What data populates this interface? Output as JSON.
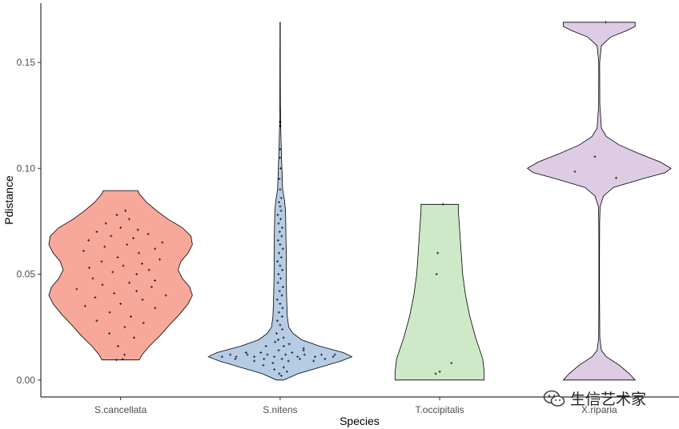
{
  "chart_data": {
    "type": "violin",
    "title": "",
    "xlabel": "Species",
    "ylabel": "Pdistance",
    "ylim": [
      -0.008,
      0.178
    ],
    "yticks": [
      0.0,
      0.05,
      0.1,
      0.15
    ],
    "ytick_labels": [
      "0.00",
      "0.05",
      "0.10",
      "0.15"
    ],
    "grid": false,
    "legend": "none",
    "categories": [
      "S.cancellata",
      "S.nitens",
      "T.occipitalis",
      "X.riparia"
    ],
    "violins": [
      {
        "category": "S.cancellata",
        "color": "#F8A89A",
        "profile": [
          [
            0.0095,
            0.26
          ],
          [
            0.012,
            0.3
          ],
          [
            0.016,
            0.4
          ],
          [
            0.021,
            0.55
          ],
          [
            0.026,
            0.68
          ],
          [
            0.031,
            0.82
          ],
          [
            0.036,
            0.94
          ],
          [
            0.04,
            1.0
          ],
          [
            0.044,
            0.96
          ],
          [
            0.048,
            0.86
          ],
          [
            0.052,
            0.8
          ],
          [
            0.056,
            0.84
          ],
          [
            0.06,
            0.94
          ],
          [
            0.064,
            1.0
          ],
          [
            0.068,
            0.98
          ],
          [
            0.072,
            0.86
          ],
          [
            0.076,
            0.66
          ],
          [
            0.08,
            0.5
          ],
          [
            0.084,
            0.36
          ],
          [
            0.088,
            0.26
          ],
          [
            0.0895,
            0.24
          ]
        ],
        "points": [
          [
            0.0095,
            -0.25
          ],
          [
            0.0098,
            0.12
          ],
          [
            0.012,
            0.2
          ],
          [
            0.016,
            -0.1
          ],
          [
            0.02,
            0.4
          ],
          [
            0.022,
            -0.3
          ],
          [
            0.025,
            0.1
          ],
          [
            0.027,
            0.5
          ],
          [
            0.028,
            -0.5
          ],
          [
            0.03,
            0.2
          ],
          [
            0.032,
            -0.2
          ],
          [
            0.034,
            0.6
          ],
          [
            0.035,
            -0.6
          ],
          [
            0.036,
            0.0
          ],
          [
            0.038,
            0.35
          ],
          [
            0.039,
            -0.4
          ],
          [
            0.04,
            0.7
          ],
          [
            0.041,
            -0.1
          ],
          [
            0.042,
            0.25
          ],
          [
            0.043,
            -0.7
          ],
          [
            0.044,
            0.5
          ],
          [
            0.045,
            -0.3
          ],
          [
            0.046,
            0.15
          ],
          [
            0.047,
            0.6
          ],
          [
            0.048,
            -0.5
          ],
          [
            0.05,
            0.3
          ],
          [
            0.051,
            -0.15
          ],
          [
            0.052,
            0.55
          ],
          [
            0.053,
            -0.6
          ],
          [
            0.054,
            0.05
          ],
          [
            0.055,
            0.4
          ],
          [
            0.056,
            -0.35
          ],
          [
            0.057,
            0.7
          ],
          [
            0.058,
            -0.05
          ],
          [
            0.06,
            0.3
          ],
          [
            0.061,
            -0.6
          ],
          [
            0.062,
            0.55
          ],
          [
            0.063,
            -0.25
          ],
          [
            0.064,
            0.1
          ],
          [
            0.065,
            0.65
          ],
          [
            0.066,
            -0.5
          ],
          [
            0.067,
            0.2
          ],
          [
            0.068,
            -0.15
          ],
          [
            0.069,
            0.45
          ],
          [
            0.07,
            -0.4
          ],
          [
            0.071,
            0.3
          ],
          [
            0.072,
            0.0
          ],
          [
            0.074,
            -0.3
          ],
          [
            0.076,
            0.2
          ],
          [
            0.078,
            -0.1
          ],
          [
            0.08,
            0.15
          ]
        ]
      },
      {
        "category": "S.nitens",
        "color": "#B6CCE4",
        "profile": [
          [
            0.0,
            0.05
          ],
          [
            0.003,
            0.25
          ],
          [
            0.006,
            0.55
          ],
          [
            0.009,
            0.85
          ],
          [
            0.011,
            1.0
          ],
          [
            0.013,
            0.88
          ],
          [
            0.016,
            0.55
          ],
          [
            0.019,
            0.3
          ],
          [
            0.022,
            0.18
          ],
          [
            0.025,
            0.12
          ],
          [
            0.03,
            0.1
          ],
          [
            0.04,
            0.09
          ],
          [
            0.05,
            0.085
          ],
          [
            0.06,
            0.085
          ],
          [
            0.07,
            0.08
          ],
          [
            0.08,
            0.075
          ],
          [
            0.085,
            0.06
          ],
          [
            0.09,
            0.035
          ],
          [
            0.1,
            0.025
          ],
          [
            0.11,
            0.015
          ],
          [
            0.12,
            0.008
          ],
          [
            0.13,
            0.004
          ],
          [
            0.15,
            0.003
          ],
          [
            0.169,
            0.002
          ]
        ],
        "points": [
          [
            0.011,
            -0.9
          ],
          [
            0.012,
            -0.82
          ],
          [
            0.01,
            -0.75
          ],
          [
            0.011,
            -0.68
          ],
          [
            0.013,
            -0.6
          ],
          [
            0.012,
            -0.54
          ],
          [
            0.009,
            -0.47
          ],
          [
            0.011,
            -0.4
          ],
          [
            0.013,
            -0.34
          ],
          [
            0.01,
            -0.27
          ],
          [
            0.012,
            -0.21
          ],
          [
            0.008,
            -0.15
          ],
          [
            0.011,
            -0.09
          ],
          [
            0.014,
            -0.03
          ],
          [
            0.01,
            0.03
          ],
          [
            0.012,
            0.09
          ],
          [
            0.009,
            0.15
          ],
          [
            0.013,
            0.21
          ],
          [
            0.011,
            0.27
          ],
          [
            0.01,
            0.33
          ],
          [
            0.012,
            0.4
          ],
          [
            0.014,
            0.47
          ],
          [
            0.011,
            0.54
          ],
          [
            0.009,
            0.61
          ],
          [
            0.012,
            0.68
          ],
          [
            0.01,
            0.75
          ],
          [
            0.011,
            0.82
          ],
          [
            0.012,
            0.9
          ],
          [
            0.007,
            -0.4
          ],
          [
            0.006,
            0.1
          ],
          [
            0.005,
            -0.2
          ],
          [
            0.004,
            0.3
          ],
          [
            0.003,
            -0.05
          ],
          [
            0.002,
            0.1
          ],
          [
            0.016,
            -0.4
          ],
          [
            0.017,
            0.3
          ],
          [
            0.018,
            -0.2
          ],
          [
            0.015,
            0.55
          ],
          [
            0.016,
            0.1
          ],
          [
            0.019,
            -0.1
          ],
          [
            0.02,
            0.2
          ],
          [
            0.022,
            -0.3
          ],
          [
            0.024,
            0.25
          ],
          [
            0.026,
            0.0
          ],
          [
            0.028,
            -0.4
          ],
          [
            0.03,
            0.3
          ],
          [
            0.032,
            -0.2
          ],
          [
            0.034,
            0.4
          ],
          [
            0.036,
            0.0
          ],
          [
            0.038,
            -0.5
          ],
          [
            0.04,
            0.3
          ],
          [
            0.042,
            -0.1
          ],
          [
            0.044,
            0.5
          ],
          [
            0.046,
            -0.4
          ],
          [
            0.048,
            0.1
          ],
          [
            0.05,
            -0.3
          ],
          [
            0.052,
            0.4
          ],
          [
            0.054,
            0.0
          ],
          [
            0.056,
            -0.5
          ],
          [
            0.058,
            0.2
          ],
          [
            0.06,
            -0.2
          ],
          [
            0.062,
            0.5
          ],
          [
            0.064,
            0.0
          ],
          [
            0.066,
            -0.4
          ],
          [
            0.068,
            0.3
          ],
          [
            0.07,
            -0.1
          ],
          [
            0.072,
            0.4
          ],
          [
            0.074,
            -0.3
          ],
          [
            0.076,
            0.1
          ],
          [
            0.078,
            -0.5
          ],
          [
            0.08,
            0.2
          ],
          [
            0.082,
            0.0
          ],
          [
            0.084,
            -0.3
          ],
          [
            0.086,
            0.3
          ],
          [
            0.09,
            0.0
          ],
          [
            0.095,
            -0.4
          ],
          [
            0.1,
            0.3
          ],
          [
            0.105,
            -0.2
          ],
          [
            0.109,
            0.1
          ],
          [
            0.12,
            0.0
          ],
          [
            0.122,
            0.0
          ]
        ]
      },
      {
        "category": "T.occipitalis",
        "color": "#CDE9C8",
        "profile": [
          [
            0.0,
            0.62
          ],
          [
            0.004,
            0.62
          ],
          [
            0.01,
            0.6
          ],
          [
            0.02,
            0.5
          ],
          [
            0.03,
            0.42
          ],
          [
            0.04,
            0.36
          ],
          [
            0.05,
            0.32
          ],
          [
            0.06,
            0.3
          ],
          [
            0.07,
            0.28
          ],
          [
            0.08,
            0.26
          ],
          [
            0.083,
            0.26
          ]
        ],
        "points": [
          [
            0.003,
            -0.1
          ],
          [
            0.004,
            0.0
          ],
          [
            0.008,
            0.3
          ],
          [
            0.05,
            -0.15
          ],
          [
            0.06,
            -0.1
          ],
          [
            0.083,
            0.2
          ]
        ]
      },
      {
        "category": "X.riparia",
        "color": "#DDCCE3",
        "profile": [
          [
            0.0,
            0.5
          ],
          [
            0.003,
            0.42
          ],
          [
            0.007,
            0.28
          ],
          [
            0.011,
            0.1
          ],
          [
            0.014,
            0.03
          ],
          [
            0.02,
            0.008
          ],
          [
            0.04,
            0.004
          ],
          [
            0.06,
            0.004
          ],
          [
            0.075,
            0.006
          ],
          [
            0.082,
            0.012
          ],
          [
            0.087,
            0.06
          ],
          [
            0.091,
            0.2
          ],
          [
            0.095,
            0.6
          ],
          [
            0.098,
            0.92
          ],
          [
            0.1,
            1.0
          ],
          [
            0.103,
            0.85
          ],
          [
            0.107,
            0.55
          ],
          [
            0.111,
            0.28
          ],
          [
            0.115,
            0.1
          ],
          [
            0.119,
            0.03
          ],
          [
            0.13,
            0.008
          ],
          [
            0.15,
            0.006
          ],
          [
            0.158,
            0.03
          ],
          [
            0.162,
            0.16
          ],
          [
            0.165,
            0.38
          ],
          [
            0.167,
            0.5
          ],
          [
            0.169,
            0.5
          ]
        ],
        "points": [
          [
            0.0985,
            -0.4
          ],
          [
            0.1055,
            -0.1
          ],
          [
            0.0955,
            0.4
          ],
          [
            0.169,
            0.2
          ]
        ]
      }
    ]
  },
  "watermark": {
    "icon": "wechat-icon",
    "text": "生信艺术家"
  }
}
